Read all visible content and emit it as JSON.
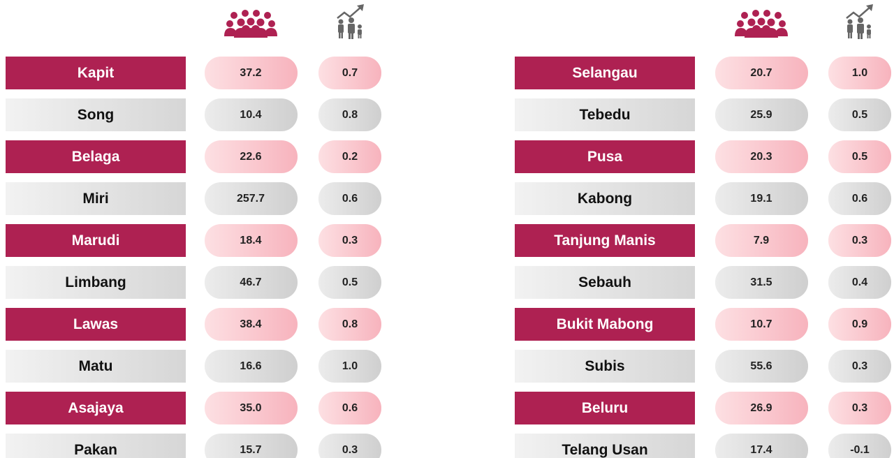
{
  "left": {
    "rows": [
      {
        "name": "Kapit",
        "population": "37.2",
        "growth": "0.7"
      },
      {
        "name": "Song",
        "population": "10.4",
        "growth": "0.8"
      },
      {
        "name": "Belaga",
        "population": "22.6",
        "growth": "0.2"
      },
      {
        "name": "Miri",
        "population": "257.7",
        "growth": "0.6"
      },
      {
        "name": "Marudi",
        "population": "18.4",
        "growth": "0.3"
      },
      {
        "name": "Limbang",
        "population": "46.7",
        "growth": "0.5"
      },
      {
        "name": "Lawas",
        "population": "38.4",
        "growth": "0.8"
      },
      {
        "name": "Matu",
        "population": "16.6",
        "growth": "1.0"
      },
      {
        "name": "Asajaya",
        "population": "35.0",
        "growth": "0.6"
      },
      {
        "name": "Pakan",
        "population": "15.7",
        "growth": "0.3"
      }
    ]
  },
  "right": {
    "rows": [
      {
        "name": "Selangau",
        "population": "20.7",
        "growth": "1.0"
      },
      {
        "name": "Tebedu",
        "population": "25.9",
        "growth": "0.5"
      },
      {
        "name": "Pusa",
        "population": "20.3",
        "growth": "0.5"
      },
      {
        "name": "Kabong",
        "population": "19.1",
        "growth": "0.6"
      },
      {
        "name": "Tanjung Manis",
        "population": "7.9",
        "growth": "0.3"
      },
      {
        "name": "Sebauh",
        "population": "31.5",
        "growth": "0.4"
      },
      {
        "name": "Bukit Mabong",
        "population": "10.7",
        "growth": "0.9"
      },
      {
        "name": "Subis",
        "population": "55.6",
        "growth": "0.3"
      },
      {
        "name": "Beluru",
        "population": "26.9",
        "growth": "0.3"
      },
      {
        "name": "Telang Usan",
        "population": "17.4",
        "growth": "-0.1"
      }
    ]
  }
}
